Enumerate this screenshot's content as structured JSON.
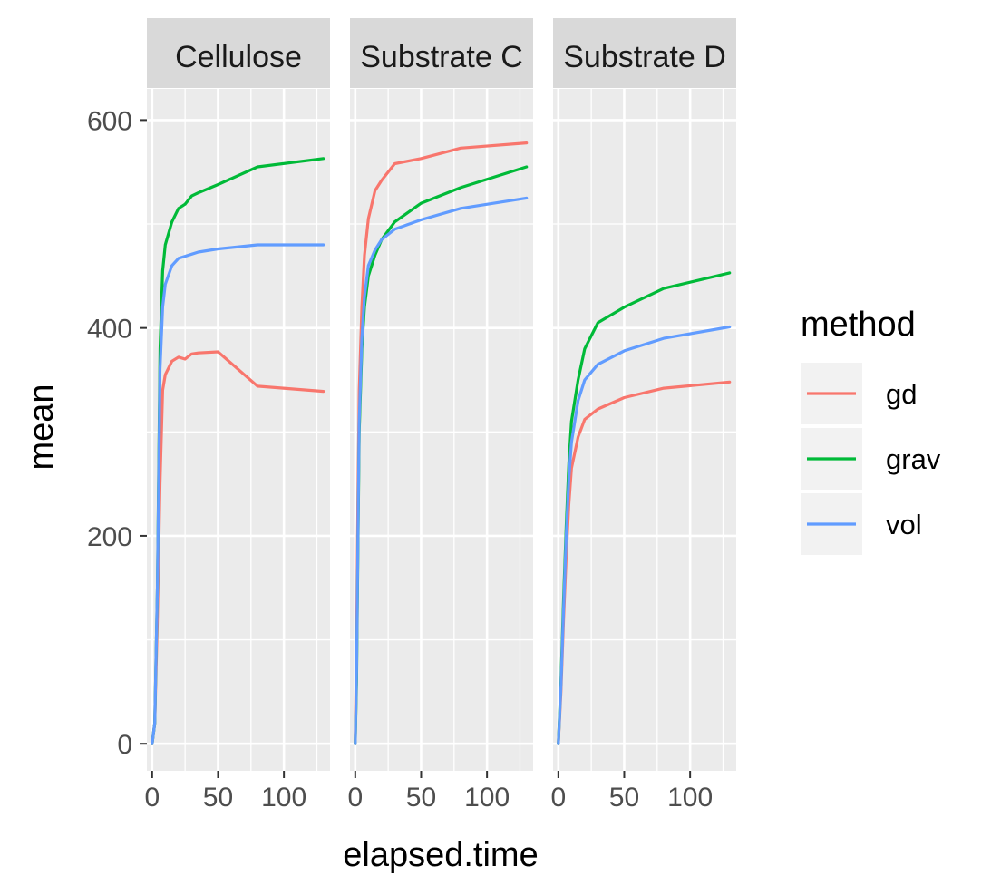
{
  "chart_data": {
    "type": "line",
    "xlabel": "elapsed.time",
    "ylabel": "mean",
    "xlim": [
      -4,
      135
    ],
    "ylim": [
      -26,
      630
    ],
    "x_ticks": [
      0,
      50,
      100
    ],
    "y_ticks": [
      0,
      200,
      400,
      600
    ],
    "grid": true,
    "legend": {
      "title": "method",
      "position": "right",
      "entries": [
        "gd",
        "grav",
        "vol"
      ]
    },
    "colors": {
      "gd": "#F8766D",
      "grav": "#00BA38",
      "vol": "#619CFF"
    },
    "panels": [
      {
        "label": "Cellulose",
        "series": [
          {
            "name": "gd",
            "x": [
              0,
              2,
              4,
              6,
              8,
              10,
              15,
              20,
              25,
              30,
              35,
              50,
              80,
              130
            ],
            "y": [
              0,
              20,
              120,
              250,
              340,
              355,
              368,
              372,
              370,
              375,
              376,
              377,
              344,
              339
            ]
          },
          {
            "name": "grav",
            "x": [
              0,
              2,
              4,
              6,
              8,
              10,
              15,
              20,
              25,
              30,
              35,
              50,
              80,
              130
            ],
            "y": [
              0,
              20,
              150,
              380,
              455,
              480,
              502,
              515,
              519,
              527,
              530,
              538,
              555,
              563
            ]
          },
          {
            "name": "vol",
            "x": [
              0,
              2,
              4,
              6,
              8,
              10,
              15,
              20,
              25,
              30,
              35,
              50,
              80,
              130
            ],
            "y": [
              0,
              20,
              150,
              360,
              420,
              442,
              460,
              467,
              469,
              471,
              473,
              476,
              480,
              480
            ]
          }
        ]
      },
      {
        "label": "Substrate C",
        "series": [
          {
            "name": "gd",
            "x": [
              0,
              1,
              2,
              3,
              5,
              7,
              10,
              15,
              20,
              30,
              50,
              80,
              130
            ],
            "y": [
              0,
              100,
              230,
              340,
              420,
              470,
              505,
              532,
              542,
              558,
              563,
              573,
              578
            ]
          },
          {
            "name": "grav",
            "x": [
              0,
              1,
              2,
              3,
              5,
              7,
              10,
              15,
              20,
              30,
              50,
              80,
              130
            ],
            "y": [
              0,
              60,
              180,
              300,
              380,
              420,
              450,
              470,
              485,
              502,
              520,
              535,
              555
            ]
          },
          {
            "name": "vol",
            "x": [
              0,
              1,
              2,
              3,
              5,
              7,
              10,
              15,
              20,
              30,
              50,
              80,
              130
            ],
            "y": [
              0,
              70,
              190,
              310,
              390,
              430,
              460,
              475,
              485,
              495,
              504,
              515,
              525
            ]
          }
        ]
      },
      {
        "label": "Substrate D",
        "series": [
          {
            "name": "gd",
            "x": [
              0,
              2,
              4,
              6,
              8,
              10,
              15,
              20,
              30,
              50,
              80,
              130
            ],
            "y": [
              0,
              50,
              120,
              180,
              230,
              265,
              295,
              312,
              322,
              333,
              342,
              348
            ]
          },
          {
            "name": "grav",
            "x": [
              0,
              2,
              4,
              6,
              8,
              10,
              15,
              20,
              30,
              50,
              80,
              130
            ],
            "y": [
              0,
              60,
              140,
              210,
              270,
              310,
              350,
              380,
              405,
              420,
              438,
              453
            ]
          },
          {
            "name": "vol",
            "x": [
              0,
              2,
              4,
              6,
              8,
              10,
              15,
              20,
              30,
              50,
              80,
              130
            ],
            "y": [
              0,
              55,
              130,
              200,
              255,
              290,
              330,
              350,
              365,
              378,
              390,
              401
            ]
          }
        ]
      }
    ]
  }
}
